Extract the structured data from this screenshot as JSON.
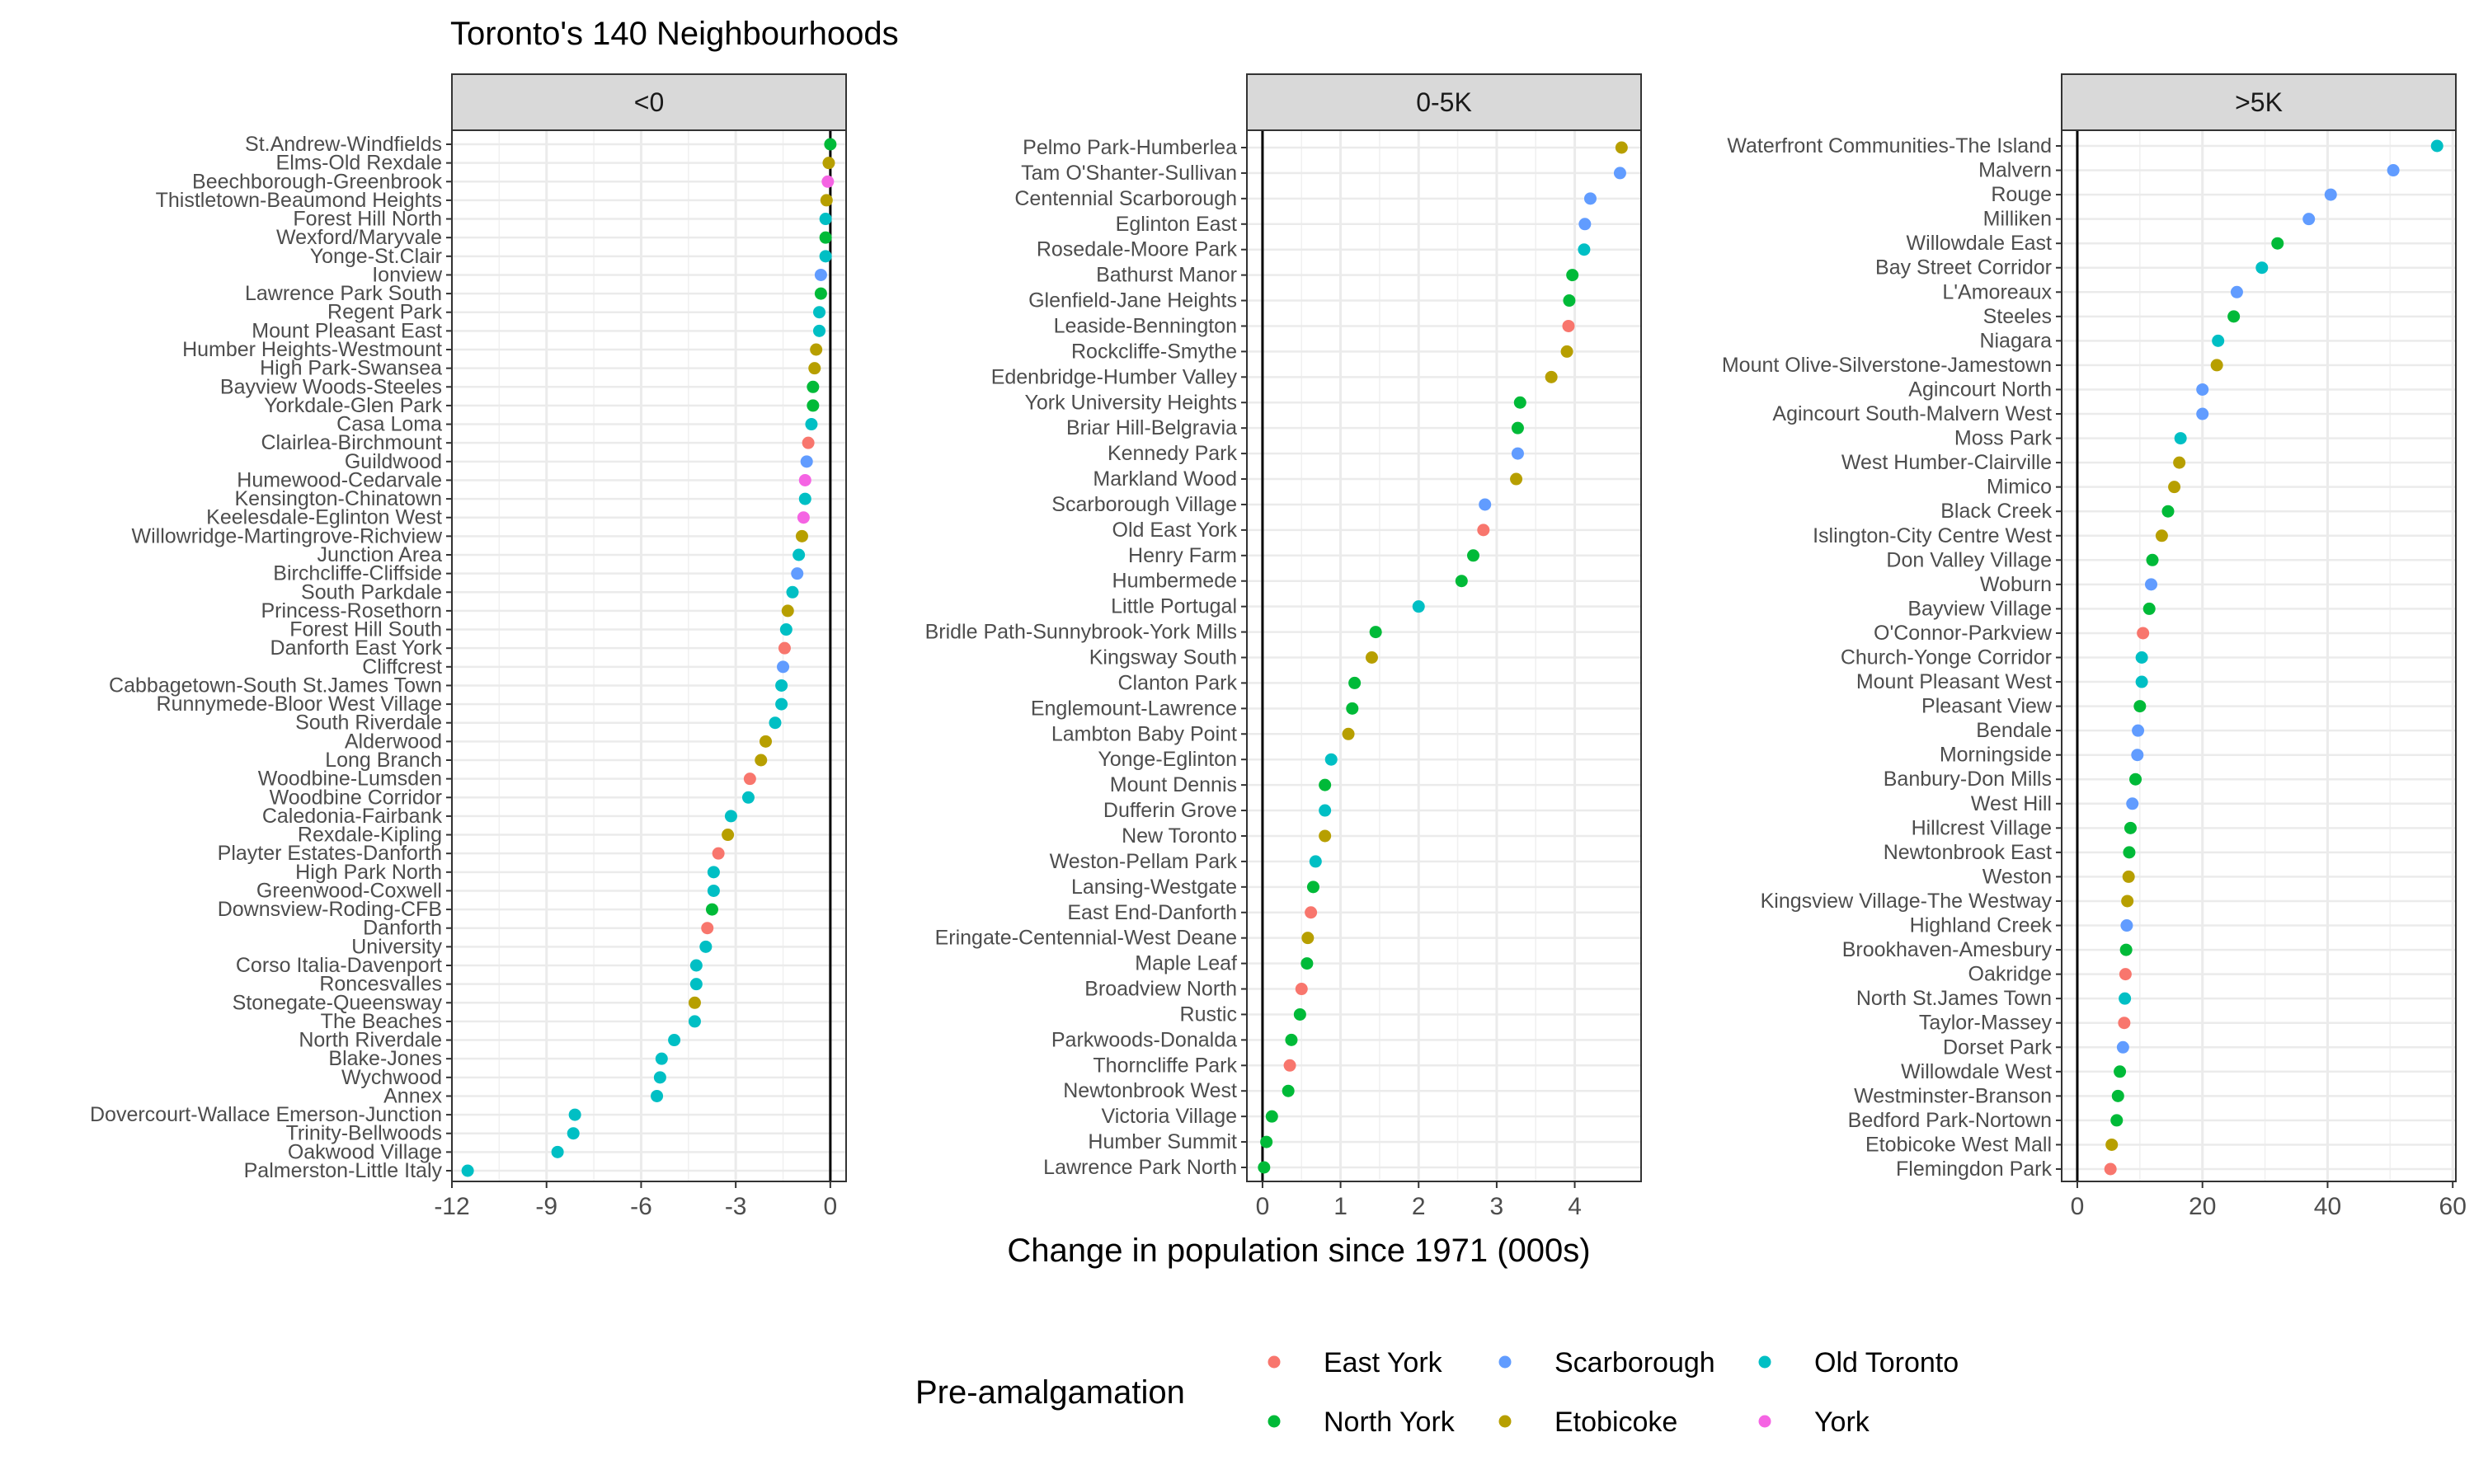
{
  "chart_data": {
    "type": "scatter",
    "title": "Toronto's 140 Neighbourhoods",
    "xlabel": "Change in population since 1971 (000s)",
    "ylabel": "",
    "legend": {
      "title": "Pre-amalgamation",
      "position": "bottom",
      "entries": [
        "East York",
        "North York",
        "Scarborough",
        "Etobicoke",
        "Old Toronto",
        "York"
      ]
    },
    "colors": {
      "East York": "#F8766D",
      "Etobicoke": "#B79F00",
      "North York": "#00BA38",
      "Old Toronto": "#00BFC4",
      "Scarborough": "#619CFF",
      "York": "#F564E3"
    },
    "panels": [
      {
        "label": "<0",
        "xlim": [
          -12,
          0.5
        ],
        "xticks": [
          -12,
          -9,
          -6,
          -3,
          0
        ],
        "xtick_labels": [
          "-12",
          "-9",
          "-6",
          "-3",
          "0"
        ],
        "points": [
          {
            "name": "St.Andrew-Windfields",
            "value": 0.0,
            "region": "North York"
          },
          {
            "name": "Elms-Old Rexdale",
            "value": -0.05,
            "region": "Etobicoke"
          },
          {
            "name": "Beechborough-Greenbrook",
            "value": -0.08,
            "region": "York"
          },
          {
            "name": "Thistletown-Beaumond Heights",
            "value": -0.12,
            "region": "Etobicoke"
          },
          {
            "name": "Forest Hill North",
            "value": -0.15,
            "region": "Old Toronto"
          },
          {
            "name": "Wexford/Maryvale",
            "value": -0.15,
            "region": "North York"
          },
          {
            "name": "Yonge-St.Clair",
            "value": -0.15,
            "region": "Old Toronto"
          },
          {
            "name": "Ionview",
            "value": -0.3,
            "region": "Scarborough"
          },
          {
            "name": "Lawrence Park South",
            "value": -0.3,
            "region": "North York"
          },
          {
            "name": "Regent Park",
            "value": -0.35,
            "region": "Old Toronto"
          },
          {
            "name": "Mount Pleasant East",
            "value": -0.35,
            "region": "Old Toronto"
          },
          {
            "name": "Humber Heights-Westmount",
            "value": -0.45,
            "region": "Etobicoke"
          },
          {
            "name": "High Park-Swansea",
            "value": -0.5,
            "region": "Etobicoke"
          },
          {
            "name": "Bayview Woods-Steeles",
            "value": -0.55,
            "region": "North York"
          },
          {
            "name": "Yorkdale-Glen Park",
            "value": -0.55,
            "region": "North York"
          },
          {
            "name": "Casa Loma",
            "value": -0.6,
            "region": "Old Toronto"
          },
          {
            "name": "Clairlea-Birchmount",
            "value": -0.7,
            "region": "East York"
          },
          {
            "name": "Guildwood",
            "value": -0.75,
            "region": "Scarborough"
          },
          {
            "name": "Humewood-Cedarvale",
            "value": -0.8,
            "region": "York"
          },
          {
            "name": "Kensington-Chinatown",
            "value": -0.8,
            "region": "Old Toronto"
          },
          {
            "name": "Keelesdale-Eglinton West",
            "value": -0.85,
            "region": "York"
          },
          {
            "name": "Willowridge-Martingrove-Richview",
            "value": -0.9,
            "region": "Etobicoke"
          },
          {
            "name": "Junction Area",
            "value": -1.0,
            "region": "Old Toronto"
          },
          {
            "name": "Birchcliffe-Cliffside",
            "value": -1.05,
            "region": "Scarborough"
          },
          {
            "name": "South Parkdale",
            "value": -1.2,
            "region": "Old Toronto"
          },
          {
            "name": "Princess-Rosethorn",
            "value": -1.35,
            "region": "Etobicoke"
          },
          {
            "name": "Forest Hill South",
            "value": -1.4,
            "region": "Old Toronto"
          },
          {
            "name": "Danforth East York",
            "value": -1.45,
            "region": "East York"
          },
          {
            "name": "Cliffcrest",
            "value": -1.5,
            "region": "Scarborough"
          },
          {
            "name": "Cabbagetown-South St.James Town",
            "value": -1.55,
            "region": "Old Toronto"
          },
          {
            "name": "Runnymede-Bloor West Village",
            "value": -1.55,
            "region": "Old Toronto"
          },
          {
            "name": "South Riverdale",
            "value": -1.75,
            "region": "Old Toronto"
          },
          {
            "name": "Alderwood",
            "value": -2.05,
            "region": "Etobicoke"
          },
          {
            "name": "Long Branch",
            "value": -2.2,
            "region": "Etobicoke"
          },
          {
            "name": "Woodbine-Lumsden",
            "value": -2.55,
            "region": "East York"
          },
          {
            "name": "Woodbine Corridor",
            "value": -2.6,
            "region": "Old Toronto"
          },
          {
            "name": "Caledonia-Fairbank",
            "value": -3.15,
            "region": "Old Toronto"
          },
          {
            "name": "Rexdale-Kipling",
            "value": -3.25,
            "region": "Etobicoke"
          },
          {
            "name": "Playter Estates-Danforth",
            "value": -3.55,
            "region": "East York"
          },
          {
            "name": "High Park North",
            "value": -3.7,
            "region": "Old Toronto"
          },
          {
            "name": "Greenwood-Coxwell",
            "value": -3.7,
            "region": "Old Toronto"
          },
          {
            "name": "Downsview-Roding-CFB",
            "value": -3.75,
            "region": "North York"
          },
          {
            "name": "Danforth",
            "value": -3.9,
            "region": "East York"
          },
          {
            "name": "University",
            "value": -3.95,
            "region": "Old Toronto"
          },
          {
            "name": "Corso Italia-Davenport",
            "value": -4.25,
            "region": "Old Toronto"
          },
          {
            "name": "Roncesvalles",
            "value": -4.25,
            "region": "Old Toronto"
          },
          {
            "name": "Stonegate-Queensway",
            "value": -4.3,
            "region": "Etobicoke"
          },
          {
            "name": "The Beaches",
            "value": -4.3,
            "region": "Old Toronto"
          },
          {
            "name": "North Riverdale",
            "value": -4.95,
            "region": "Old Toronto"
          },
          {
            "name": "Blake-Jones",
            "value": -5.35,
            "region": "Old Toronto"
          },
          {
            "name": "Wychwood",
            "value": -5.4,
            "region": "Old Toronto"
          },
          {
            "name": "Annex",
            "value": -5.5,
            "region": "Old Toronto"
          },
          {
            "name": "Dovercourt-Wallace Emerson-Junction",
            "value": -8.1,
            "region": "Old Toronto"
          },
          {
            "name": "Trinity-Bellwoods",
            "value": -8.15,
            "region": "Old Toronto"
          },
          {
            "name": "Oakwood Village",
            "value": -8.65,
            "region": "Old Toronto"
          },
          {
            "name": "Palmerston-Little Italy",
            "value": -11.5,
            "region": "Old Toronto"
          }
        ]
      },
      {
        "label": "0-5K",
        "xlim": [
          -0.2,
          4.85
        ],
        "xticks": [
          0,
          1,
          2,
          3,
          4
        ],
        "xtick_labels": [
          "0",
          "1",
          "2",
          "3",
          "4"
        ],
        "points": [
          {
            "name": "Pelmo Park-Humberlea",
            "value": 4.6,
            "region": "Etobicoke"
          },
          {
            "name": "Tam O'Shanter-Sullivan",
            "value": 4.58,
            "region": "Scarborough"
          },
          {
            "name": "Centennial Scarborough",
            "value": 4.2,
            "region": "Scarborough"
          },
          {
            "name": "Eglinton East",
            "value": 4.13,
            "region": "Scarborough"
          },
          {
            "name": "Rosedale-Moore Park",
            "value": 4.12,
            "region": "Old Toronto"
          },
          {
            "name": "Bathurst Manor",
            "value": 3.97,
            "region": "North York"
          },
          {
            "name": "Glenfield-Jane Heights",
            "value": 3.93,
            "region": "North York"
          },
          {
            "name": "Leaside-Bennington",
            "value": 3.92,
            "region": "East York"
          },
          {
            "name": "Rockcliffe-Smythe",
            "value": 3.9,
            "region": "Etobicoke"
          },
          {
            "name": "Edenbridge-Humber Valley",
            "value": 3.7,
            "region": "Etobicoke"
          },
          {
            "name": "York University Heights",
            "value": 3.3,
            "region": "North York"
          },
          {
            "name": "Briar Hill-Belgravia",
            "value": 3.27,
            "region": "North York"
          },
          {
            "name": "Kennedy Park",
            "value": 3.27,
            "region": "Scarborough"
          },
          {
            "name": "Markland Wood",
            "value": 3.25,
            "region": "Etobicoke"
          },
          {
            "name": "Scarborough Village",
            "value": 2.85,
            "region": "Scarborough"
          },
          {
            "name": "Old East York",
            "value": 2.83,
            "region": "East York"
          },
          {
            "name": "Henry Farm",
            "value": 2.7,
            "region": "North York"
          },
          {
            "name": "Humbermede",
            "value": 2.55,
            "region": "North York"
          },
          {
            "name": "Little Portugal",
            "value": 2.0,
            "region": "Old Toronto"
          },
          {
            "name": "Bridle Path-Sunnybrook-York Mills",
            "value": 1.45,
            "region": "North York"
          },
          {
            "name": "Kingsway South",
            "value": 1.4,
            "region": "Etobicoke"
          },
          {
            "name": "Clanton Park",
            "value": 1.18,
            "region": "North York"
          },
          {
            "name": "Englemount-Lawrence",
            "value": 1.15,
            "region": "North York"
          },
          {
            "name": "Lambton Baby Point",
            "value": 1.1,
            "region": "Etobicoke"
          },
          {
            "name": "Yonge-Eglinton",
            "value": 0.88,
            "region": "Old Toronto"
          },
          {
            "name": "Mount Dennis",
            "value": 0.8,
            "region": "North York"
          },
          {
            "name": "Dufferin Grove",
            "value": 0.8,
            "region": "Old Toronto"
          },
          {
            "name": "New Toronto",
            "value": 0.8,
            "region": "Etobicoke"
          },
          {
            "name": "Weston-Pellam Park",
            "value": 0.68,
            "region": "Old Toronto"
          },
          {
            "name": "Lansing-Westgate",
            "value": 0.65,
            "region": "North York"
          },
          {
            "name": "East End-Danforth",
            "value": 0.62,
            "region": "East York"
          },
          {
            "name": "Eringate-Centennial-West Deane",
            "value": 0.58,
            "region": "Etobicoke"
          },
          {
            "name": "Maple Leaf",
            "value": 0.57,
            "region": "North York"
          },
          {
            "name": "Broadview North",
            "value": 0.5,
            "region": "East York"
          },
          {
            "name": "Rustic",
            "value": 0.48,
            "region": "North York"
          },
          {
            "name": "Parkwoods-Donalda",
            "value": 0.37,
            "region": "North York"
          },
          {
            "name": "Thorncliffe Park",
            "value": 0.35,
            "region": "East York"
          },
          {
            "name": "Newtonbrook West",
            "value": 0.33,
            "region": "North York"
          },
          {
            "name": "Victoria Village",
            "value": 0.12,
            "region": "North York"
          },
          {
            "name": "Humber Summit",
            "value": 0.05,
            "region": "North York"
          },
          {
            "name": "Lawrence Park North",
            "value": 0.02,
            "region": "North York"
          }
        ]
      },
      {
        "label": ">5K",
        "xlim": [
          -2.5,
          60.5
        ],
        "xticks": [
          0,
          20,
          40,
          60
        ],
        "xtick_labels": [
          "0",
          "20",
          "40",
          "60"
        ],
        "points": [
          {
            "name": "Waterfront Communities-The Island",
            "value": 57.5,
            "region": "Old Toronto"
          },
          {
            "name": "Malvern",
            "value": 50.5,
            "region": "Scarborough"
          },
          {
            "name": "Rouge",
            "value": 40.5,
            "region": "Scarborough"
          },
          {
            "name": "Milliken",
            "value": 37.0,
            "region": "Scarborough"
          },
          {
            "name": "Willowdale East",
            "value": 32.0,
            "region": "North York"
          },
          {
            "name": "Bay Street Corridor",
            "value": 29.5,
            "region": "Old Toronto"
          },
          {
            "name": "L'Amoreaux",
            "value": 25.5,
            "region": "Scarborough"
          },
          {
            "name": "Steeles",
            "value": 25.0,
            "region": "North York"
          },
          {
            "name": "Niagara",
            "value": 22.5,
            "region": "Old Toronto"
          },
          {
            "name": "Mount Olive-Silverstone-Jamestown",
            "value": 22.3,
            "region": "Etobicoke"
          },
          {
            "name": "Agincourt North",
            "value": 20.0,
            "region": "Scarborough"
          },
          {
            "name": "Agincourt South-Malvern West",
            "value": 20.0,
            "region": "Scarborough"
          },
          {
            "name": "Moss Park",
            "value": 16.5,
            "region": "Old Toronto"
          },
          {
            "name": "West Humber-Clairville",
            "value": 16.3,
            "region": "Etobicoke"
          },
          {
            "name": "Mimico",
            "value": 15.5,
            "region": "Etobicoke"
          },
          {
            "name": "Black Creek",
            "value": 14.5,
            "region": "North York"
          },
          {
            "name": "Islington-City Centre West",
            "value": 13.5,
            "region": "Etobicoke"
          },
          {
            "name": "Don Valley Village",
            "value": 12.0,
            "region": "North York"
          },
          {
            "name": "Woburn",
            "value": 11.8,
            "region": "Scarborough"
          },
          {
            "name": "Bayview Village",
            "value": 11.5,
            "region": "North York"
          },
          {
            "name": "O'Connor-Parkview",
            "value": 10.5,
            "region": "East York"
          },
          {
            "name": "Church-Yonge Corridor",
            "value": 10.3,
            "region": "Old Toronto"
          },
          {
            "name": "Mount Pleasant West",
            "value": 10.3,
            "region": "Old Toronto"
          },
          {
            "name": "Pleasant View",
            "value": 10.0,
            "region": "North York"
          },
          {
            "name": "Bendale",
            "value": 9.7,
            "region": "Scarborough"
          },
          {
            "name": "Morningside",
            "value": 9.6,
            "region": "Scarborough"
          },
          {
            "name": "Banbury-Don Mills",
            "value": 9.3,
            "region": "North York"
          },
          {
            "name": "West Hill",
            "value": 8.8,
            "region": "Scarborough"
          },
          {
            "name": "Hillcrest Village",
            "value": 8.5,
            "region": "North York"
          },
          {
            "name": "Newtonbrook East",
            "value": 8.3,
            "region": "North York"
          },
          {
            "name": "Weston",
            "value": 8.2,
            "region": "Etobicoke"
          },
          {
            "name": "Kingsview Village-The Westway",
            "value": 8.0,
            "region": "Etobicoke"
          },
          {
            "name": "Highland Creek",
            "value": 7.9,
            "region": "Scarborough"
          },
          {
            "name": "Brookhaven-Amesbury",
            "value": 7.8,
            "region": "North York"
          },
          {
            "name": "Oakridge",
            "value": 7.7,
            "region": "East York"
          },
          {
            "name": "North St.James Town",
            "value": 7.6,
            "region": "Old Toronto"
          },
          {
            "name": "Taylor-Massey",
            "value": 7.5,
            "region": "East York"
          },
          {
            "name": "Dorset Park",
            "value": 7.3,
            "region": "Scarborough"
          },
          {
            "name": "Willowdale West",
            "value": 6.8,
            "region": "North York"
          },
          {
            "name": "Westminster-Branson",
            "value": 6.5,
            "region": "North York"
          },
          {
            "name": "Bedford Park-Nortown",
            "value": 6.3,
            "region": "North York"
          },
          {
            "name": "Etobicoke West Mall",
            "value": 5.5,
            "region": "Etobicoke"
          },
          {
            "name": "Flemingdon Park",
            "value": 5.3,
            "region": "East York"
          }
        ]
      }
    ]
  }
}
